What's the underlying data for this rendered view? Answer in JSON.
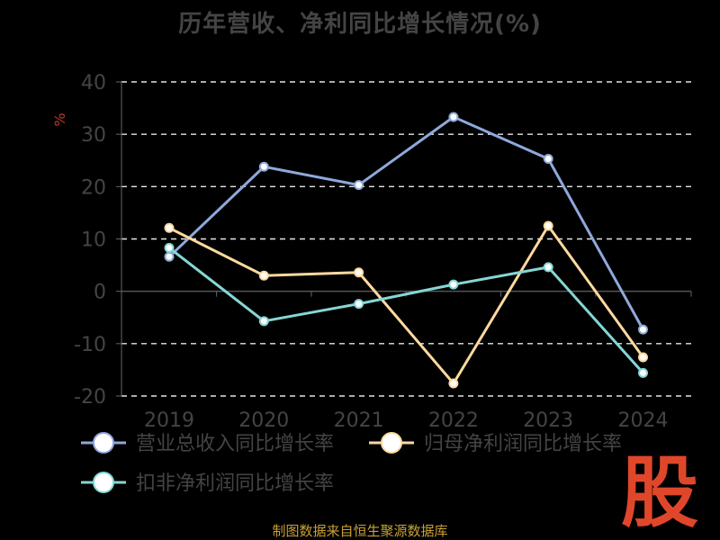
{
  "chart_data": {
    "type": "line",
    "title": "历年营收、净利同比增长情况(%)",
    "ylabel": "%",
    "categories": [
      "2019",
      "2020",
      "2021",
      "2022",
      "2023",
      "2024"
    ],
    "ylim": [
      -20,
      40
    ],
    "yticks": [
      -20,
      -10,
      0,
      10,
      20,
      30,
      40
    ],
    "grid": true,
    "legend_position": "bottom",
    "series": [
      {
        "name": "营业总收入同比增长率",
        "color": "#8ea9db",
        "values": [
          6.6,
          23.8,
          20.3,
          33.3,
          25.3,
          -7.3
        ]
      },
      {
        "name": "归母净利润同比增长率",
        "color": "#ffd9a0",
        "values": [
          12.1,
          3.0,
          3.6,
          -17.6,
          12.5,
          -12.6
        ]
      },
      {
        "name": "扣非净利润同比增长率",
        "color": "#86d6d6",
        "values": [
          8.3,
          -5.7,
          -2.4,
          1.3,
          4.6,
          -15.6
        ]
      }
    ]
  },
  "footer": "制图数据来自恒生聚源数据库",
  "watermark": "股"
}
